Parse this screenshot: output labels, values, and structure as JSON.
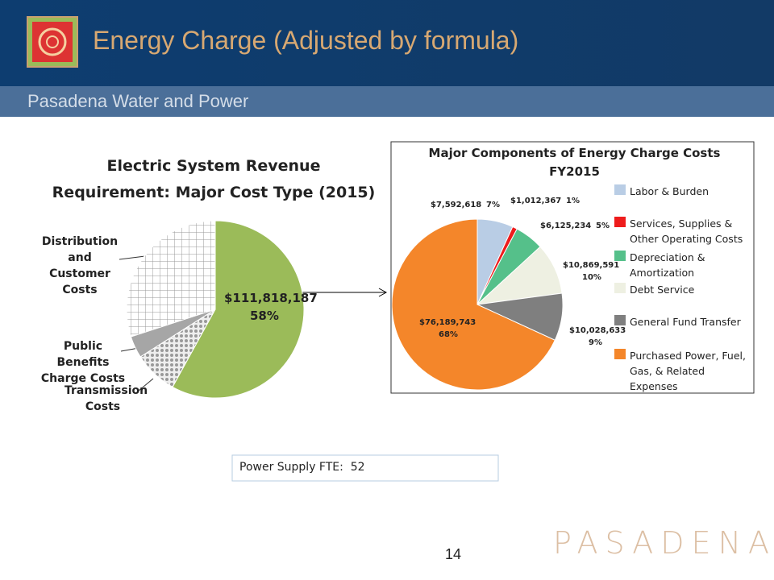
{
  "header": {
    "title": "Energy Charge (Adjusted by formula)",
    "subtitle": "Pasadena Water and Power"
  },
  "chart_data": [
    {
      "type": "pie",
      "title": "Electric System Revenue Requirement: Major Cost Type (2015)",
      "categories": [
        null,
        "Transmission Costs",
        "Public Benefits Charge Costs",
        "Distribution and Customer Costs"
      ],
      "values": [
        58,
        8,
        4,
        30
      ],
      "value_labels": [
        "58%",
        null,
        null,
        null
      ],
      "amount_labels": [
        "$111,818,187",
        null,
        null,
        null
      ],
      "colors": [
        "#9bbb59",
        "#d9d9d9",
        "#a6a6a6",
        "#ffffff"
      ],
      "patterns": [
        null,
        "dots",
        null,
        "grid"
      ]
    },
    {
      "type": "pie",
      "title": "Major Components of Energy Charge Costs",
      "subtitle": "FY2015",
      "categories": [
        "Labor & Burden",
        "Services, Supplies & Other Operating Costs",
        "Depreciation & Amortization",
        "Debt Service",
        "General Fund Transfer",
        "Purchased Power, Fuel, Gas, & Related Expenses"
      ],
      "values": [
        7592618,
        1012367,
        6125234,
        10869591,
        10028633,
        76189743
      ],
      "value_labels": [
        "$7,592,618",
        "$1,012,367",
        "$6,125,234",
        "$10,869,591",
        "$10,028,633",
        "$76,189,743"
      ],
      "percent_labels": [
        "7%",
        "1%",
        "5%",
        "10%",
        "9%",
        "68%"
      ],
      "colors": [
        "#b9cde5",
        "#ee1c1c",
        "#55c08a",
        "#eef0e2",
        "#7f7f7f",
        "#f4862a"
      ],
      "legend": "right"
    }
  ],
  "note": "Power Supply FTE:  52",
  "page_number": "14",
  "brand": "PASADENA"
}
